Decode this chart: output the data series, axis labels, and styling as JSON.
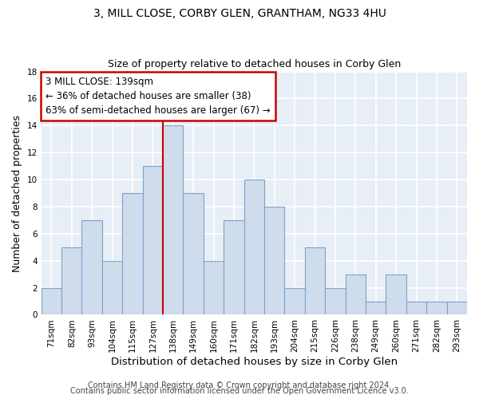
{
  "title_line1": "3, MILL CLOSE, CORBY GLEN, GRANTHAM, NG33 4HU",
  "title_line2": "Size of property relative to detached houses in Corby Glen",
  "xlabel": "Distribution of detached houses by size in Corby Glen",
  "ylabel": "Number of detached properties",
  "footer_line1": "Contains HM Land Registry data © Crown copyright and database right 2024.",
  "footer_line2": "Contains public sector information licensed under the Open Government Licence v3.0.",
  "bin_labels": [
    "71sqm",
    "82sqm",
    "93sqm",
    "104sqm",
    "115sqm",
    "127sqm",
    "138sqm",
    "149sqm",
    "160sqm",
    "171sqm",
    "182sqm",
    "193sqm",
    "204sqm",
    "215sqm",
    "226sqm",
    "238sqm",
    "249sqm",
    "260sqm",
    "271sqm",
    "282sqm",
    "293sqm"
  ],
  "bin_counts": [
    2,
    5,
    7,
    4,
    9,
    11,
    14,
    9,
    4,
    7,
    10,
    8,
    2,
    5,
    2,
    3,
    1,
    3,
    1,
    1,
    1
  ],
  "bar_color": "#cfdcec",
  "bar_edge_color": "#7aa3cc",
  "annotation_title": "3 MILL CLOSE: 139sqm",
  "annotation_line1": "← 36% of detached houses are smaller (38)",
  "annotation_line2": "63% of semi-detached houses are larger (67) →",
  "annotation_box_color": "#ffffff",
  "annotation_box_edge": "#cc0000",
  "highlight_line_color": "#cc0000",
  "highlight_bin_index": 6,
  "ylim": [
    0,
    18
  ],
  "yticks": [
    0,
    2,
    4,
    6,
    8,
    10,
    12,
    14,
    16,
    18
  ],
  "plot_bg_color": "#e8eef5",
  "fig_bg_color": "#ffffff",
  "grid_color": "#ffffff",
  "title_fontsize": 10,
  "subtitle_fontsize": 9,
  "ylabel_fontsize": 9,
  "xlabel_fontsize": 9.5,
  "tick_fontsize": 7.5,
  "annotation_fontsize": 8.5,
  "footer_fontsize": 7
}
